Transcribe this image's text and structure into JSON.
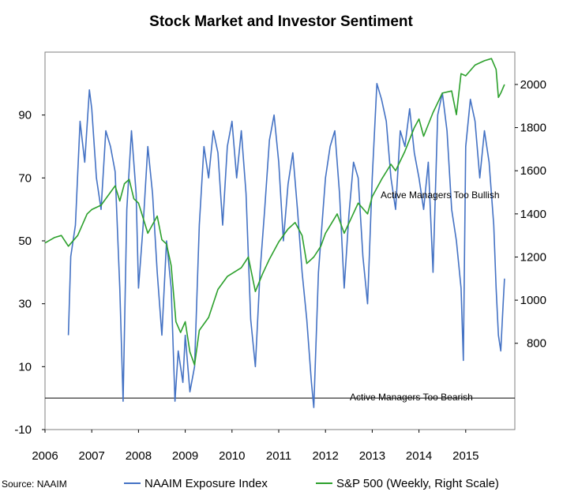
{
  "chart_data": {
    "type": "line",
    "title": "Stock Market and Investor Sentiment",
    "source": "Source: NAAIM",
    "x_ticks": [
      "2006",
      "2007",
      "2008",
      "2009",
      "2010",
      "2011",
      "2012",
      "2013",
      "2014",
      "2015"
    ],
    "left_axis": {
      "ticks": [
        -10,
        10,
        30,
        50,
        70,
        90
      ],
      "range": [
        -10,
        110
      ]
    },
    "right_axis": {
      "ticks": [
        800,
        1000,
        1200,
        1400,
        1600,
        1800,
        2000
      ],
      "range": [
        400,
        2150
      ]
    },
    "annotations": {
      "bullish": "Active Managers Too Bullish",
      "bearish": "Active Managers Too Bearish"
    },
    "reference_line": {
      "axis": "left",
      "value": 0
    },
    "series": [
      {
        "name": "NAAIM Exposure Index",
        "axis": "left",
        "color": "#4472C4",
        "points": [
          [
            2006.5,
            20
          ],
          [
            2006.55,
            45
          ],
          [
            2006.65,
            55
          ],
          [
            2006.75,
            88
          ],
          [
            2006.85,
            75
          ],
          [
            2006.95,
            98
          ],
          [
            2007.0,
            92
          ],
          [
            2007.1,
            70
          ],
          [
            2007.2,
            60
          ],
          [
            2007.3,
            85
          ],
          [
            2007.4,
            80
          ],
          [
            2007.5,
            72
          ],
          [
            2007.6,
            35
          ],
          [
            2007.67,
            -1
          ],
          [
            2007.75,
            60
          ],
          [
            2007.85,
            85
          ],
          [
            2007.95,
            65
          ],
          [
            2008.0,
            35
          ],
          [
            2008.1,
            55
          ],
          [
            2008.2,
            80
          ],
          [
            2008.3,
            65
          ],
          [
            2008.4,
            40
          ],
          [
            2008.5,
            20
          ],
          [
            2008.6,
            50
          ],
          [
            2008.7,
            35
          ],
          [
            2008.78,
            -1
          ],
          [
            2008.85,
            15
          ],
          [
            2008.95,
            5
          ],
          [
            2009.0,
            20
          ],
          [
            2009.1,
            2
          ],
          [
            2009.2,
            10
          ],
          [
            2009.3,
            55
          ],
          [
            2009.4,
            80
          ],
          [
            2009.5,
            70
          ],
          [
            2009.6,
            85
          ],
          [
            2009.7,
            78
          ],
          [
            2009.8,
            55
          ],
          [
            2009.9,
            80
          ],
          [
            2010.0,
            88
          ],
          [
            2010.1,
            70
          ],
          [
            2010.2,
            85
          ],
          [
            2010.3,
            65
          ],
          [
            2010.4,
            25
          ],
          [
            2010.5,
            10
          ],
          [
            2010.6,
            40
          ],
          [
            2010.7,
            60
          ],
          [
            2010.8,
            82
          ],
          [
            2010.9,
            90
          ],
          [
            2011.0,
            75
          ],
          [
            2011.1,
            50
          ],
          [
            2011.2,
            68
          ],
          [
            2011.3,
            78
          ],
          [
            2011.4,
            60
          ],
          [
            2011.5,
            40
          ],
          [
            2011.6,
            25
          ],
          [
            2011.7,
            5
          ],
          [
            2011.75,
            -3
          ],
          [
            2011.85,
            40
          ],
          [
            2011.95,
            60
          ],
          [
            2012.0,
            70
          ],
          [
            2012.1,
            80
          ],
          [
            2012.2,
            85
          ],
          [
            2012.3,
            65
          ],
          [
            2012.4,
            35
          ],
          [
            2012.5,
            58
          ],
          [
            2012.6,
            75
          ],
          [
            2012.7,
            70
          ],
          [
            2012.8,
            45
          ],
          [
            2012.9,
            30
          ],
          [
            2013.0,
            70
          ],
          [
            2013.1,
            100
          ],
          [
            2013.2,
            95
          ],
          [
            2013.3,
            88
          ],
          [
            2013.4,
            70
          ],
          [
            2013.5,
            60
          ],
          [
            2013.6,
            85
          ],
          [
            2013.7,
            80
          ],
          [
            2013.8,
            92
          ],
          [
            2013.9,
            78
          ],
          [
            2014.0,
            70
          ],
          [
            2014.1,
            60
          ],
          [
            2014.2,
            75
          ],
          [
            2014.3,
            40
          ],
          [
            2014.4,
            90
          ],
          [
            2014.5,
            97
          ],
          [
            2014.6,
            85
          ],
          [
            2014.7,
            60
          ],
          [
            2014.8,
            50
          ],
          [
            2014.9,
            35
          ],
          [
            2014.95,
            12
          ],
          [
            2015.0,
            80
          ],
          [
            2015.1,
            95
          ],
          [
            2015.2,
            88
          ],
          [
            2015.3,
            70
          ],
          [
            2015.4,
            85
          ],
          [
            2015.5,
            75
          ],
          [
            2015.6,
            55
          ],
          [
            2015.65,
            35
          ],
          [
            2015.7,
            20
          ],
          [
            2015.75,
            15
          ],
          [
            2015.8,
            30
          ],
          [
            2015.83,
            38
          ]
        ]
      },
      {
        "name": "S&P 500 (Weekly, Right Scale)",
        "axis": "right",
        "color": "#2CA02C",
        "points": [
          [
            2006.0,
            1265
          ],
          [
            2006.2,
            1290
          ],
          [
            2006.35,
            1300
          ],
          [
            2006.5,
            1250
          ],
          [
            2006.7,
            1300
          ],
          [
            2006.9,
            1400
          ],
          [
            2007.0,
            1420
          ],
          [
            2007.2,
            1440
          ],
          [
            2007.4,
            1500
          ],
          [
            2007.5,
            1530
          ],
          [
            2007.6,
            1460
          ],
          [
            2007.7,
            1540
          ],
          [
            2007.8,
            1560
          ],
          [
            2007.9,
            1470
          ],
          [
            2008.0,
            1450
          ],
          [
            2008.2,
            1310
          ],
          [
            2008.4,
            1390
          ],
          [
            2008.5,
            1280
          ],
          [
            2008.6,
            1260
          ],
          [
            2008.7,
            1160
          ],
          [
            2008.8,
            900
          ],
          [
            2008.9,
            850
          ],
          [
            2009.0,
            900
          ],
          [
            2009.1,
            760
          ],
          [
            2009.2,
            700
          ],
          [
            2009.3,
            860
          ],
          [
            2009.5,
            920
          ],
          [
            2009.7,
            1050
          ],
          [
            2009.9,
            1110
          ],
          [
            2010.2,
            1150
          ],
          [
            2010.35,
            1200
          ],
          [
            2010.5,
            1040
          ],
          [
            2010.65,
            1120
          ],
          [
            2010.8,
            1190
          ],
          [
            2011.0,
            1270
          ],
          [
            2011.2,
            1330
          ],
          [
            2011.35,
            1360
          ],
          [
            2011.5,
            1300
          ],
          [
            2011.6,
            1170
          ],
          [
            2011.75,
            1200
          ],
          [
            2011.9,
            1250
          ],
          [
            2012.0,
            1310
          ],
          [
            2012.25,
            1400
          ],
          [
            2012.4,
            1310
          ],
          [
            2012.55,
            1380
          ],
          [
            2012.7,
            1450
          ],
          [
            2012.9,
            1400
          ],
          [
            2013.0,
            1480
          ],
          [
            2013.2,
            1560
          ],
          [
            2013.4,
            1630
          ],
          [
            2013.5,
            1600
          ],
          [
            2013.7,
            1690
          ],
          [
            2013.9,
            1800
          ],
          [
            2014.0,
            1840
          ],
          [
            2014.1,
            1760
          ],
          [
            2014.3,
            1870
          ],
          [
            2014.5,
            1960
          ],
          [
            2014.7,
            1970
          ],
          [
            2014.8,
            1860
          ],
          [
            2014.9,
            2050
          ],
          [
            2015.0,
            2040
          ],
          [
            2015.2,
            2090
          ],
          [
            2015.4,
            2110
          ],
          [
            2015.55,
            2120
          ],
          [
            2015.65,
            2070
          ],
          [
            2015.7,
            1940
          ],
          [
            2015.75,
            1960
          ],
          [
            2015.83,
            2000
          ]
        ]
      }
    ]
  }
}
